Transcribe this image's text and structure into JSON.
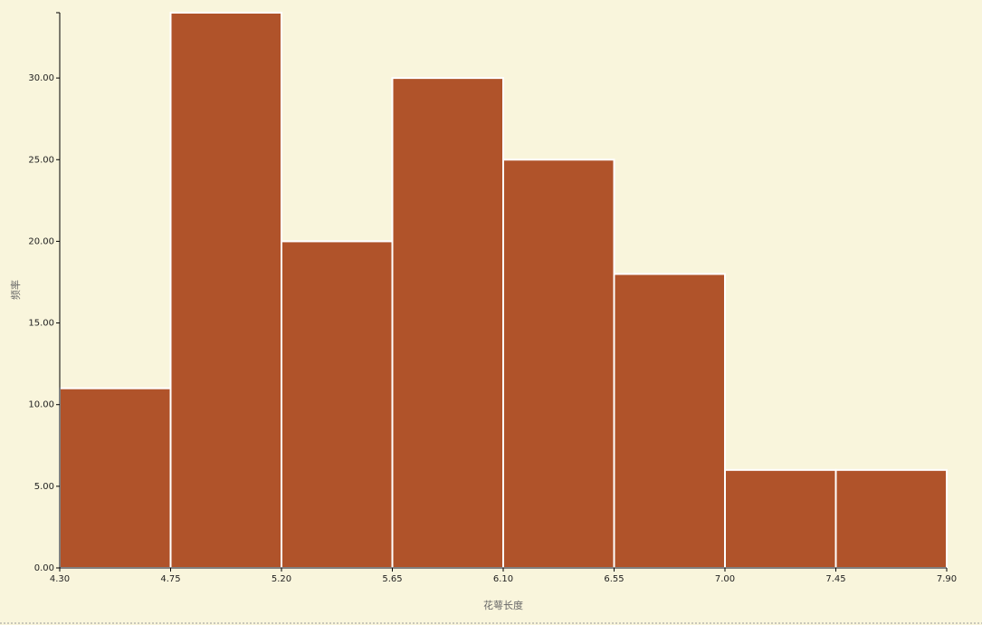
{
  "chart_data": {
    "type": "histogram",
    "x_label": "花萼长度",
    "y_label": "频率",
    "bins": [
      4.3,
      4.75,
      5.2,
      5.65,
      6.1,
      6.55,
      7.0,
      7.45,
      7.9
    ],
    "values": [
      11,
      34,
      20,
      30,
      25,
      18,
      6,
      6
    ],
    "color": "#b0532a",
    "xlim": [
      4.3,
      7.9
    ],
    "xticks": [
      {
        "value": 4.3,
        "label": "4.30"
      },
      {
        "value": 4.75,
        "label": "4.75"
      },
      {
        "value": 5.2,
        "label": "5.20"
      },
      {
        "value": 5.65,
        "label": "5.65"
      },
      {
        "value": 6.1,
        "label": "6.10"
      },
      {
        "value": 6.55,
        "label": "6.55"
      },
      {
        "value": 7.0,
        "label": "7.00"
      },
      {
        "value": 7.45,
        "label": "7.45"
      },
      {
        "value": 7.9,
        "label": "7.90"
      }
    ],
    "ylim": [
      0,
      34
    ],
    "yticks": [
      {
        "value": 0,
        "label": "0.00"
      },
      {
        "value": 5,
        "label": "5.00"
      },
      {
        "value": 10,
        "label": "10.00"
      },
      {
        "value": 15,
        "label": "15.00"
      },
      {
        "value": 20,
        "label": "20.00"
      },
      {
        "value": 25,
        "label": "25.00"
      },
      {
        "value": 30,
        "label": "30.00"
      }
    ]
  }
}
